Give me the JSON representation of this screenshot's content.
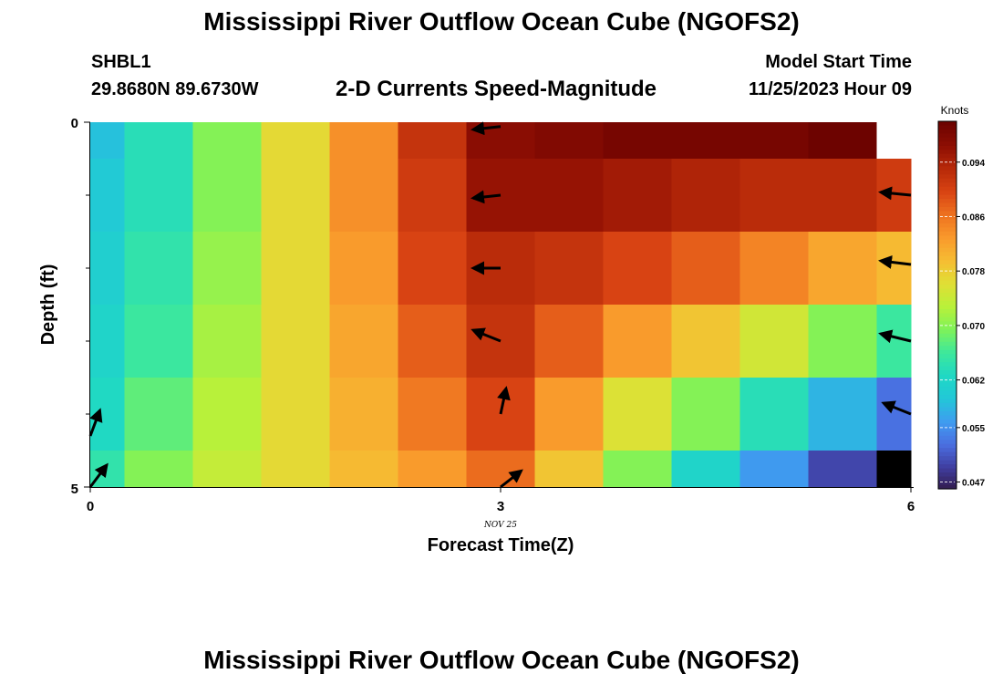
{
  "header": {
    "title": "Mississippi River Outflow Ocean Cube (NGOFS2)",
    "station_id": "SHBL1",
    "coordinates": "29.8680N  89.6730W",
    "subtitle": "2-D Currents Speed-Magnitude",
    "model_start_label": "Model Start Time",
    "model_start_value": "11/25/2023 Hour 09"
  },
  "footer": {
    "title": "Mississippi River Outflow Ocean Cube (NGOFS2)"
  },
  "chart_data": {
    "type": "heatmap",
    "xlabel": "Forecast Time(Z)",
    "ylabel": "Depth (ft)",
    "x_tick_labels": [
      "0",
      "3",
      "6"
    ],
    "x_date_label": "NOV 25",
    "y_tick_labels": [
      "0",
      "5"
    ],
    "xlim": [
      0,
      6
    ],
    "ylim": [
      0,
      5
    ],
    "colorbar": {
      "title": "Knots",
      "ticks": [
        "0.094",
        "0.086",
        "0.078",
        "0.070",
        "0.062",
        "0.055",
        "0.047"
      ],
      "tick_values": [
        0.094,
        0.086,
        0.078,
        0.07,
        0.062,
        0.055,
        0.047
      ],
      "range": [
        0.046,
        0.1
      ],
      "colors": [
        "#321a48",
        "#3f3d9f",
        "#4a6ee0",
        "#3f9cf0",
        "#22c7d8",
        "#1fd8c4",
        "#3de89c",
        "#7ef25a",
        "#b8f13a",
        "#e0df35",
        "#f6bd33",
        "#f99a2c",
        "#ee7320",
        "#d94413",
        "#b82a09",
        "#8e0e03",
        "#6d0300"
      ]
    },
    "x": [
      0,
      0.25,
      0.75,
      1.25,
      1.75,
      2.25,
      2.75,
      3.25,
      3.75,
      4.25,
      4.75,
      5.25,
      5.75,
      6
    ],
    "depth_rows": [
      {
        "depth": 0,
        "values": [
          0.059,
          0.064,
          0.07,
          0.077,
          0.084,
          0.092,
          0.097,
          0.098,
          0.099,
          0.099,
          0.099,
          0.1,
          null
        ]
      },
      {
        "depth": 1,
        "values": [
          0.06,
          0.064,
          0.07,
          0.077,
          0.084,
          0.091,
          0.096,
          0.096,
          0.095,
          0.094,
          0.093,
          0.093,
          0.091
        ]
      },
      {
        "depth": 2,
        "values": [
          0.061,
          0.065,
          0.071,
          0.077,
          0.083,
          0.09,
          0.093,
          0.092,
          0.09,
          0.088,
          0.085,
          0.082,
          0.08
        ]
      },
      {
        "depth": 3,
        "values": [
          0.062,
          0.066,
          0.072,
          0.077,
          0.082,
          0.088,
          0.092,
          0.088,
          0.083,
          0.079,
          0.075,
          0.07,
          0.066
        ]
      },
      {
        "depth": 4,
        "values": [
          0.063,
          0.068,
          0.073,
          0.077,
          0.081,
          0.086,
          0.09,
          0.083,
          0.076,
          0.07,
          0.064,
          0.058,
          0.053
        ]
      },
      {
        "depth": 5,
        "values": [
          0.065,
          0.07,
          0.074,
          0.077,
          0.08,
          0.083,
          0.087,
          0.079,
          0.07,
          0.062,
          0.056,
          0.05,
          0.04
        ]
      }
    ],
    "vectors": [
      {
        "x": 0,
        "depth": 4.3,
        "dx": 0.07,
        "dy": -0.35
      },
      {
        "x": 0,
        "depth": 5.0,
        "dx": 0.12,
        "dy": -0.3
      },
      {
        "x": 3,
        "depth": 0.06,
        "dx": -0.2,
        "dy": 0.04
      },
      {
        "x": 3,
        "depth": 1.0,
        "dx": -0.2,
        "dy": 0.04
      },
      {
        "x": 3,
        "depth": 2.0,
        "dx": -0.2,
        "dy": 0.0
      },
      {
        "x": 3,
        "depth": 3.0,
        "dx": -0.2,
        "dy": -0.15
      },
      {
        "x": 3,
        "depth": 4.0,
        "dx": 0.04,
        "dy": -0.35
      },
      {
        "x": 3,
        "depth": 5.0,
        "dx": 0.15,
        "dy": -0.22
      },
      {
        "x": 6,
        "depth": 1.0,
        "dx": -0.22,
        "dy": -0.04
      },
      {
        "x": 6,
        "depth": 1.95,
        "dx": -0.22,
        "dy": -0.05
      },
      {
        "x": 6,
        "depth": 3.0,
        "dx": -0.22,
        "dy": -0.1
      },
      {
        "x": 6,
        "depth": 4.0,
        "dx": -0.2,
        "dy": -0.15
      }
    ]
  }
}
